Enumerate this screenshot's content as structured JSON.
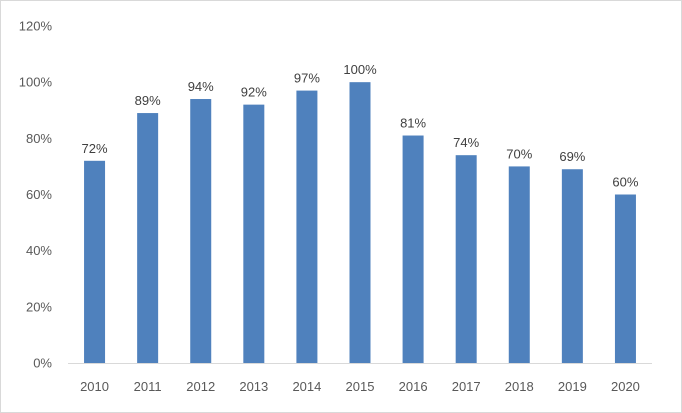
{
  "chart_data": {
    "type": "bar",
    "title": "",
    "xlabel": "",
    "ylabel": "",
    "categories": [
      "2010",
      "2011",
      "2012",
      "2013",
      "2014",
      "2015",
      "2016",
      "2017",
      "2018",
      "2019",
      "2020"
    ],
    "values": [
      72,
      89,
      94,
      92,
      97,
      100,
      81,
      74,
      70,
      69,
      60
    ],
    "data_labels": [
      "72%",
      "89%",
      "94%",
      "92%",
      "97%",
      "100%",
      "81%",
      "74%",
      "70%",
      "69%",
      "60%"
    ],
    "y_ticks": [
      0,
      20,
      40,
      60,
      80,
      100,
      120
    ],
    "y_tick_labels": [
      "0%",
      "20%",
      "40%",
      "60%",
      "80%",
      "100%",
      "120%"
    ],
    "ylim": [
      0,
      120
    ],
    "grid": false,
    "legend": "none",
    "bar_color": "#4f81bd",
    "axis_color": "#d9d9d9",
    "text_color": "#595959"
  }
}
